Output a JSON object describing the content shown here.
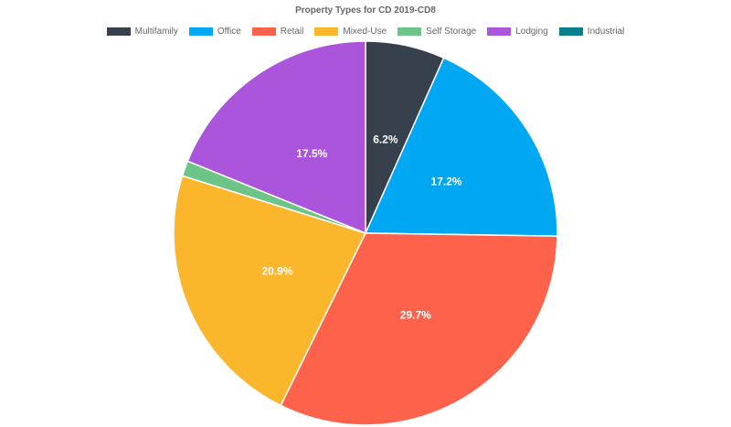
{
  "chart_data": {
    "type": "pie",
    "title": "Property Types for CD 2019-CD8",
    "legend_position": "top",
    "slices": [
      {
        "name": "Multifamily",
        "value": 6.2,
        "label": "6.2%",
        "color": "#36414d"
      },
      {
        "name": "Office",
        "value": 17.2,
        "label": "17.2%",
        "color": "#00a8f4"
      },
      {
        "name": "Retail",
        "value": 29.7,
        "label": "29.7%",
        "color": "#ff624a"
      },
      {
        "name": "Mixed-Use",
        "value": 20.9,
        "label": "20.9%",
        "color": "#fcb62b"
      },
      {
        "name": "Self Storage",
        "value": 1.2,
        "label": "",
        "color": "#6cc487"
      },
      {
        "name": "Lodging",
        "value": 17.5,
        "label": "17.5%",
        "color": "#ab55dc"
      },
      {
        "name": "Industrial",
        "value": 0.0,
        "label": "",
        "color": "#087f8c"
      }
    ]
  }
}
